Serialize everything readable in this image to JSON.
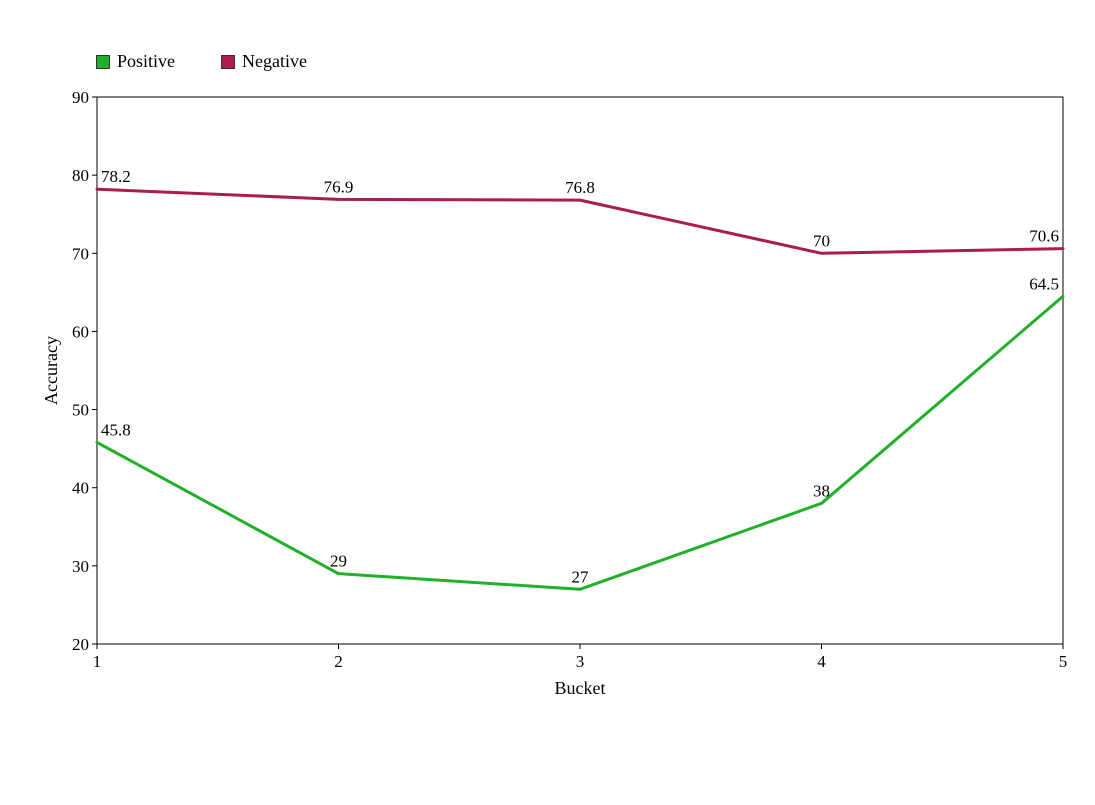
{
  "chart_data": {
    "type": "line",
    "title": "",
    "xlabel": "Bucket",
    "ylabel": "Accuracy",
    "categories": [
      "1",
      "2",
      "3",
      "4",
      "5"
    ],
    "ylim": [
      20,
      90
    ],
    "yticks": [
      20,
      30,
      40,
      50,
      60,
      70,
      80,
      90
    ],
    "grid": false,
    "legend_position": "top-left",
    "series": [
      {
        "name": "Positive",
        "color": "#22b02a",
        "values": [
          45.8,
          29,
          27,
          38,
          64.5
        ]
      },
      {
        "name": "Negative",
        "color": "#aa1d4d",
        "values": [
          78.2,
          76.9,
          76.8,
          70,
          70.6
        ]
      }
    ]
  }
}
